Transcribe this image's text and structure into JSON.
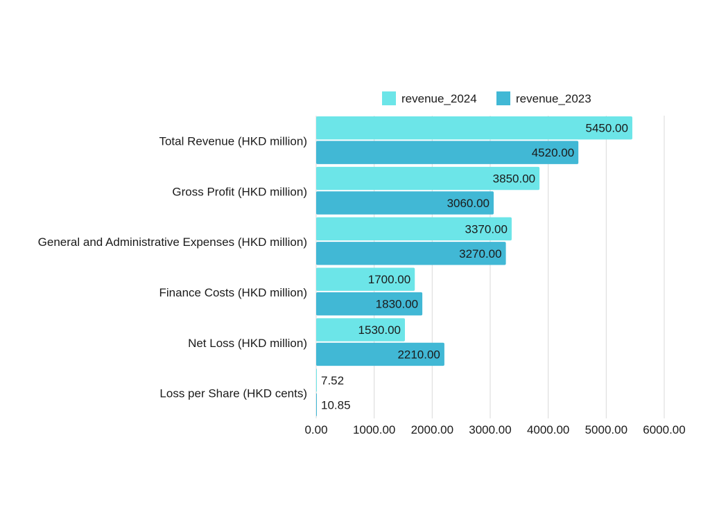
{
  "chart_data": {
    "type": "bar",
    "orientation": "horizontal",
    "categories": [
      "Total Revenue (HKD million)",
      "Gross Profit (HKD million)",
      "General and Administrative Expenses (HKD million)",
      "Finance Costs (HKD million)",
      "Net Loss (HKD million)",
      "Loss per Share (HKD cents)"
    ],
    "series": [
      {
        "name": "revenue_2024",
        "color": "#6ce5e8",
        "values": [
          5450.0,
          3850.0,
          3370.0,
          1700.0,
          1530.0,
          7.52
        ]
      },
      {
        "name": "revenue_2023",
        "color": "#41b8d5",
        "values": [
          4520.0,
          3060.0,
          3270.0,
          1830.0,
          2210.0,
          10.85
        ]
      }
    ],
    "xlim": [
      0,
      6000
    ],
    "xticks": [
      0,
      1000,
      2000,
      3000,
      4000,
      5000,
      6000
    ],
    "tick_format_decimals": 2,
    "grid": true,
    "legend_position": "top-right",
    "data_labels": true
  }
}
